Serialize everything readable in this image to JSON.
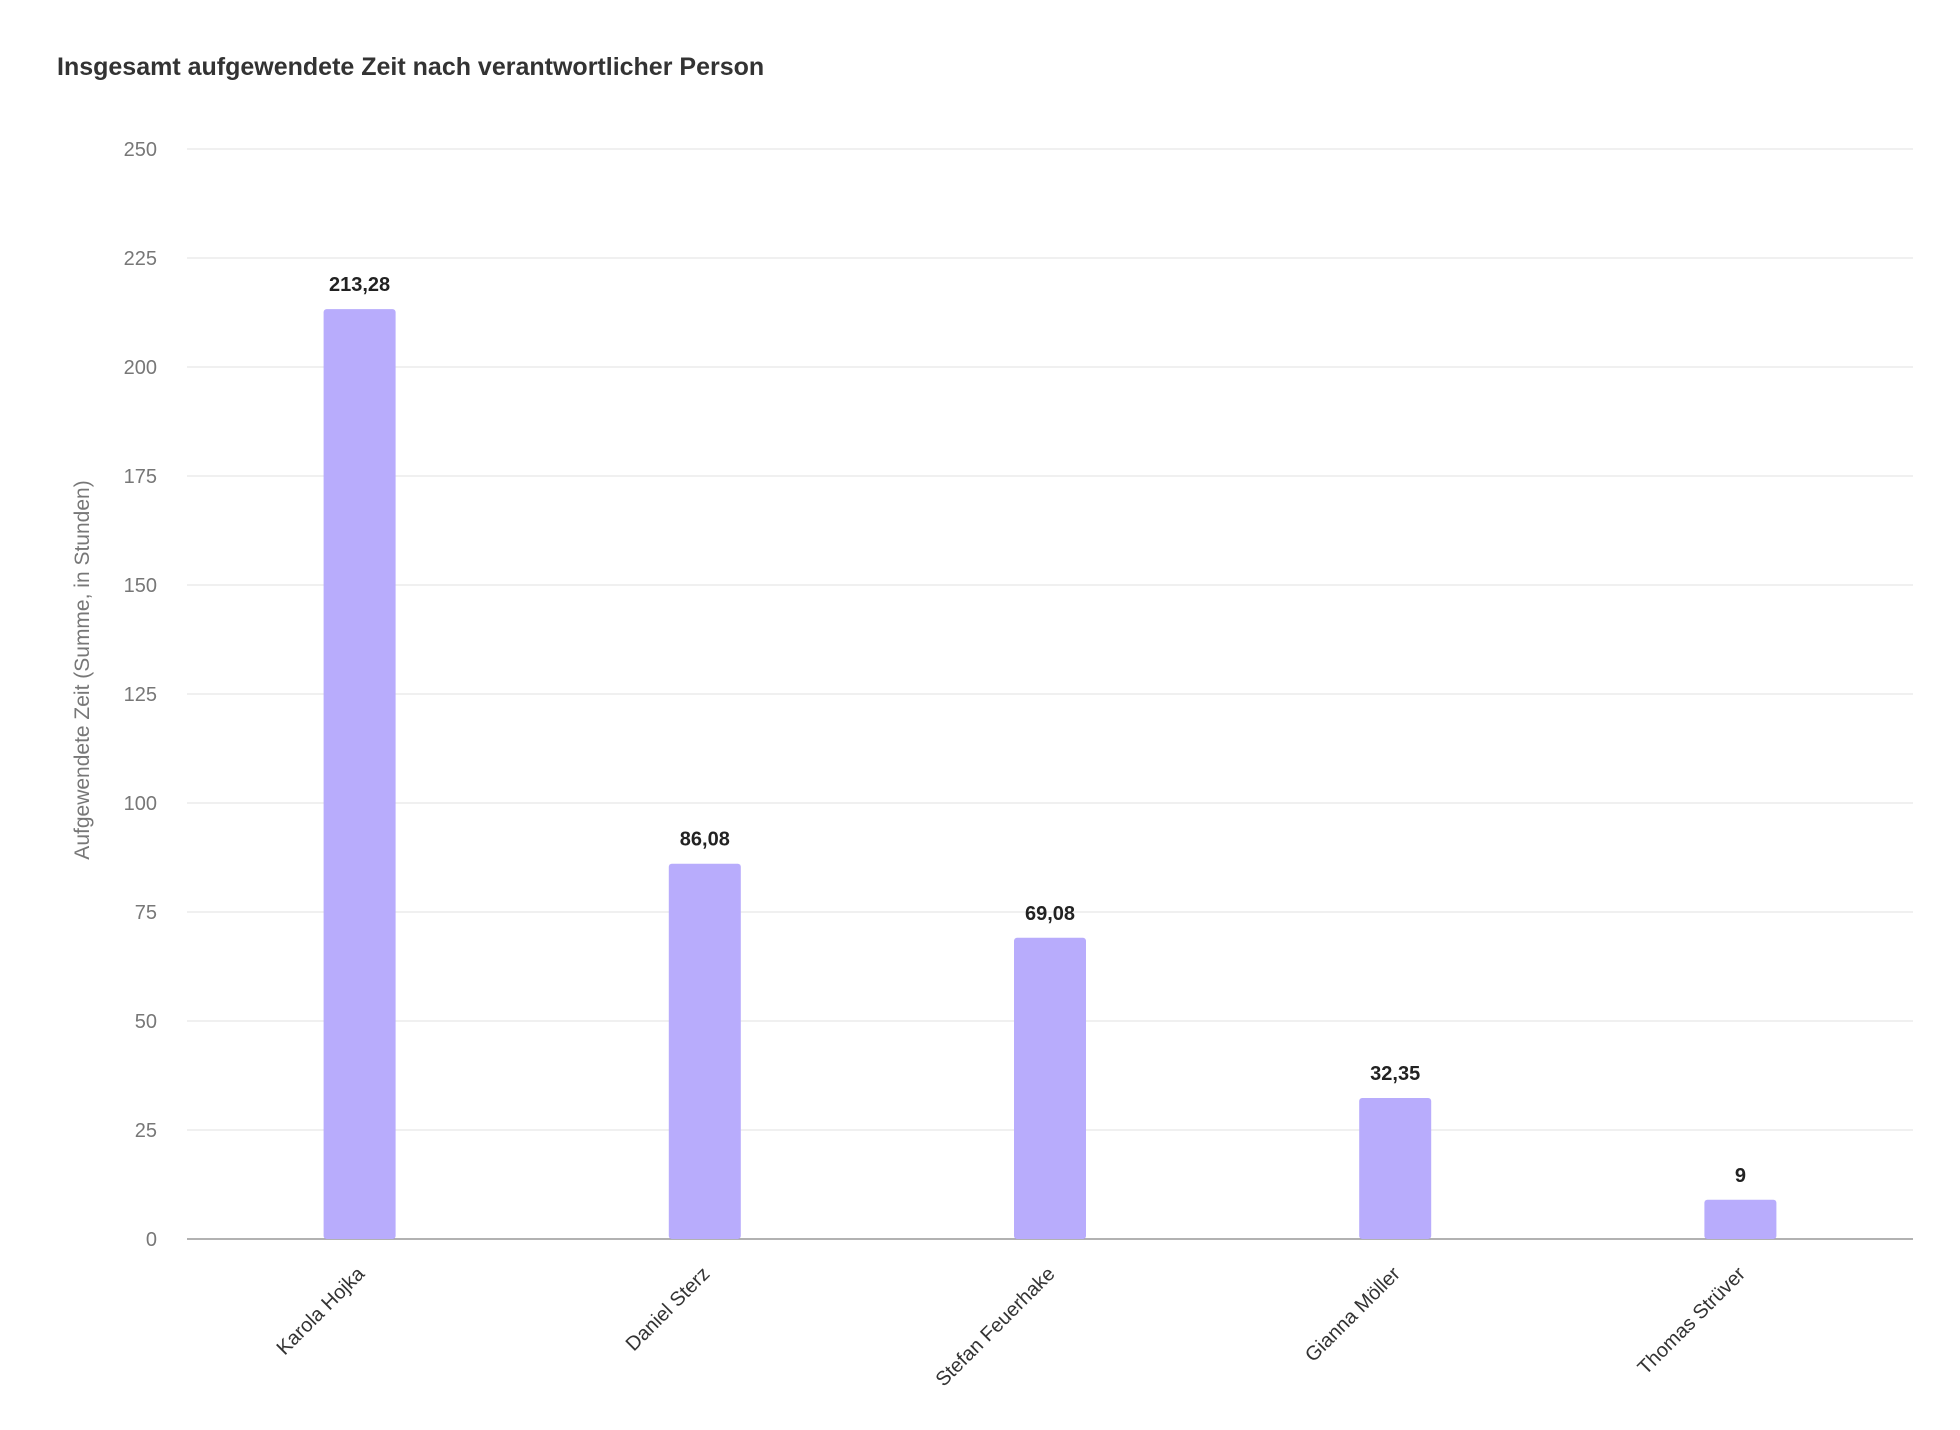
{
  "chart_data": {
    "type": "bar",
    "title": "Insgesamt aufgewendete Zeit nach verantwortlicher Person",
    "xlabel": "",
    "ylabel": "Aufgewendete Zeit (Summe, in Stunden)",
    "categories": [
      "Karola Hojka",
      "Daniel Sterz",
      "Stefan Feuerhake",
      "Gianna Möller",
      "Thomas Strüver"
    ],
    "values": [
      213.28,
      86.08,
      69.08,
      32.35,
      9
    ],
    "value_labels": [
      "213,28",
      "86,08",
      "69,08",
      "32,35",
      "9"
    ],
    "ylim": [
      0,
      250
    ],
    "yticks": [
      0,
      25,
      50,
      75,
      100,
      125,
      150,
      175,
      200,
      225,
      250
    ],
    "grid": true,
    "legend": "none",
    "bar_color": "#b8acfc"
  }
}
